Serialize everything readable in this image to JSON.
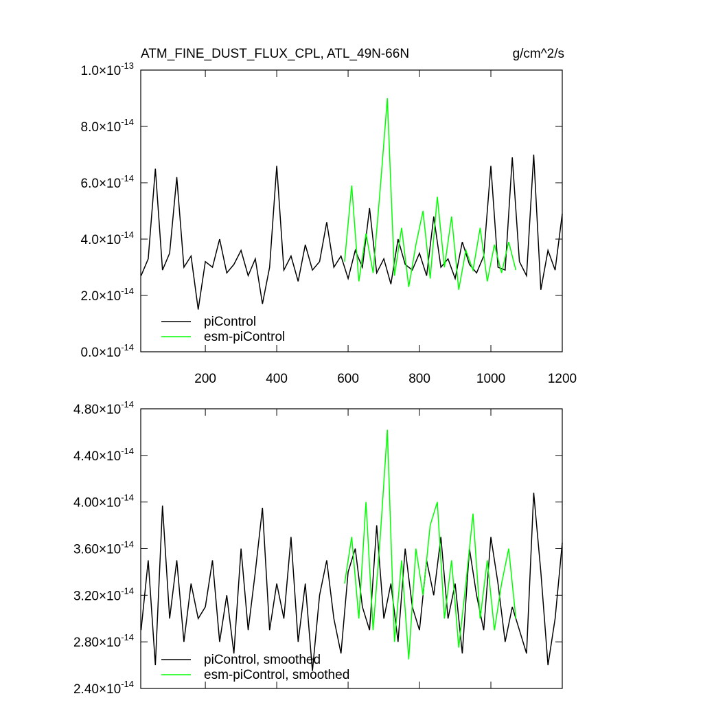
{
  "chart_data": [
    {
      "type": "line",
      "title": "ATM_FINE_DUST_FLUX_CPL, ATL_49N-66N",
      "units": "g/cm^2/s",
      "xlim": [
        19,
        1200
      ],
      "xticks": [
        200,
        400,
        600,
        800,
        1000,
        1200
      ],
      "ylim": [
        0,
        1e-13
      ],
      "yticks": [
        {
          "value": 0,
          "label": "0.0×10",
          "exponent": "-14"
        },
        {
          "value": 2e-14,
          "label": "2.0×10",
          "exponent": "-14"
        },
        {
          "value": 4e-14,
          "label": "4.0×10",
          "exponent": "-14"
        },
        {
          "value": 6e-14,
          "label": "6.0×10",
          "exponent": "-14"
        },
        {
          "value": 8e-14,
          "label": "8.0×10",
          "exponent": "-14"
        },
        {
          "value": 1e-13,
          "label": "1.0×10",
          "exponent": "-13"
        }
      ],
      "series": [
        {
          "name": "piControl",
          "color": "#000000",
          "x": [
            20,
            40,
            60,
            80,
            100,
            120,
            140,
            160,
            180,
            200,
            220,
            240,
            260,
            280,
            300,
            320,
            340,
            360,
            380,
            400,
            420,
            440,
            460,
            480,
            500,
            520,
            540,
            560,
            580,
            600,
            620,
            640,
            660,
            680,
            700,
            720,
            740,
            760,
            780,
            800,
            820,
            840,
            860,
            880,
            900,
            920,
            940,
            960,
            980,
            1000,
            1020,
            1040,
            1060,
            1080,
            1100,
            1120,
            1140,
            1160,
            1180,
            1200
          ],
          "values": [
            2.7e-14,
            3.3e-14,
            6.5e-14,
            2.9e-14,
            3.5e-14,
            6.2e-14,
            3e-14,
            3.4e-14,
            1.5e-14,
            3.2e-14,
            3e-14,
            4e-14,
            2.8e-14,
            3.1e-14,
            3.6e-14,
            2.7e-14,
            3.3e-14,
            1.7e-14,
            3e-14,
            6.6e-14,
            2.9e-14,
            3.4e-14,
            2.5e-14,
            3.8e-14,
            2.9e-14,
            3.2e-14,
            4.6e-14,
            3e-14,
            3.4e-14,
            2.6e-14,
            3.6e-14,
            3e-14,
            5.1e-14,
            2.8e-14,
            3.3e-14,
            2.4e-14,
            4e-14,
            3.1e-14,
            2.9e-14,
            3.5e-14,
            2.7e-14,
            4.8e-14,
            3e-14,
            3.3e-14,
            2.6e-14,
            3.9e-14,
            3.1e-14,
            2.8e-14,
            3.4e-14,
            6.6e-14,
            3e-14,
            2.9e-14,
            6.9e-14,
            3.2e-14,
            2.7e-14,
            7e-14,
            2.2e-14,
            3.6e-14,
            2.9e-14,
            4.9e-14
          ]
        },
        {
          "name": "esm-piControl",
          "color": "#00ff00",
          "x": [
            590,
            610,
            630,
            650,
            670,
            690,
            710,
            730,
            750,
            770,
            790,
            810,
            830,
            850,
            870,
            890,
            910,
            930,
            950,
            970,
            990,
            1010,
            1030,
            1050,
            1070
          ],
          "values": [
            3.2e-14,
            5.9e-14,
            2.5e-14,
            4.2e-14,
            2.8e-14,
            5.8e-14,
            9e-14,
            2.7e-14,
            4.4e-14,
            2.3e-14,
            3.8e-14,
            5e-14,
            2.6e-14,
            5.5e-14,
            3e-14,
            4.8e-14,
            2.2e-14,
            3.6e-14,
            2.9e-14,
            4.4e-14,
            2.5e-14,
            3.8e-14,
            2.8e-14,
            3.9e-14,
            2.9e-14
          ]
        }
      ]
    },
    {
      "type": "line",
      "xlim": [
        19,
        1200
      ],
      "xticks": [
        200,
        400,
        600,
        800,
        1000,
        1200
      ],
      "ylim": [
        2.4e-14,
        4.8e-14
      ],
      "yticks": [
        {
          "value": 2.4e-14,
          "label": "2.40×10",
          "exponent": "-14"
        },
        {
          "value": 2.8e-14,
          "label": "2.80×10",
          "exponent": "-14"
        },
        {
          "value": 3.2e-14,
          "label": "3.20×10",
          "exponent": "-14"
        },
        {
          "value": 3.6e-14,
          "label": "3.60×10",
          "exponent": "-14"
        },
        {
          "value": 4e-14,
          "label": "4.00×10",
          "exponent": "-14"
        },
        {
          "value": 4.4e-14,
          "label": "4.40×10",
          "exponent": "-14"
        },
        {
          "value": 4.8e-14,
          "label": "4.80×10",
          "exponent": "-14"
        }
      ],
      "series": [
        {
          "name": "piControl, smoothed",
          "color": "#000000",
          "x": [
            20,
            40,
            60,
            80,
            100,
            120,
            140,
            160,
            180,
            200,
            220,
            240,
            260,
            280,
            300,
            320,
            340,
            360,
            380,
            400,
            420,
            440,
            460,
            480,
            500,
            520,
            540,
            560,
            580,
            600,
            620,
            640,
            660,
            680,
            700,
            720,
            740,
            760,
            780,
            800,
            820,
            840,
            860,
            880,
            900,
            920,
            940,
            960,
            980,
            1000,
            1020,
            1040,
            1060,
            1080,
            1100,
            1120,
            1140,
            1160,
            1180,
            1200
          ],
          "values": [
            2.9e-14,
            3.5e-14,
            2.6e-14,
            3.97e-14,
            3e-14,
            3.5e-14,
            2.8e-14,
            3.3e-14,
            3e-14,
            3.1e-14,
            3.5e-14,
            2.8e-14,
            3.2e-14,
            2.7e-14,
            3.6e-14,
            2.9e-14,
            3.4e-14,
            3.95e-14,
            2.9e-14,
            3.3e-14,
            3e-14,
            3.7e-14,
            2.8e-14,
            3.3e-14,
            2.55e-14,
            3.2e-14,
            3.5e-14,
            3e-14,
            2.7e-14,
            3.4e-14,
            3.6e-14,
            3.1e-14,
            2.9e-14,
            3.8e-14,
            3e-14,
            3.3e-14,
            2.8e-14,
            3.6e-14,
            3.1e-14,
            2.9e-14,
            3.5e-14,
            3.2e-14,
            3.7e-14,
            3e-14,
            3.3e-14,
            2.7e-14,
            3.6e-14,
            3.2e-14,
            2.9e-14,
            3.7e-14,
            3.3e-14,
            2.8e-14,
            3.1e-14,
            2.9e-14,
            2.7e-14,
            4.08e-14,
            3.4e-14,
            2.6e-14,
            3e-14,
            3.65e-14
          ]
        },
        {
          "name": "esm-piControl, smoothed",
          "color": "#00ff00",
          "x": [
            590,
            610,
            630,
            650,
            670,
            690,
            710,
            730,
            750,
            770,
            790,
            810,
            830,
            850,
            870,
            890,
            910,
            930,
            950,
            970,
            990,
            1010,
            1030,
            1050,
            1070
          ],
          "values": [
            3.3e-14,
            3.7e-14,
            3e-14,
            4e-14,
            2.9e-14,
            3.7e-14,
            4.62e-14,
            2.8e-14,
            3.5e-14,
            2.65e-14,
            3.6e-14,
            3.2e-14,
            3.8e-14,
            4e-14,
            3e-14,
            3.5e-14,
            2.75e-14,
            3.3e-14,
            3.9e-14,
            3e-14,
            3.5e-14,
            2.9e-14,
            3.3e-14,
            3.6e-14,
            3e-14
          ]
        }
      ]
    }
  ]
}
